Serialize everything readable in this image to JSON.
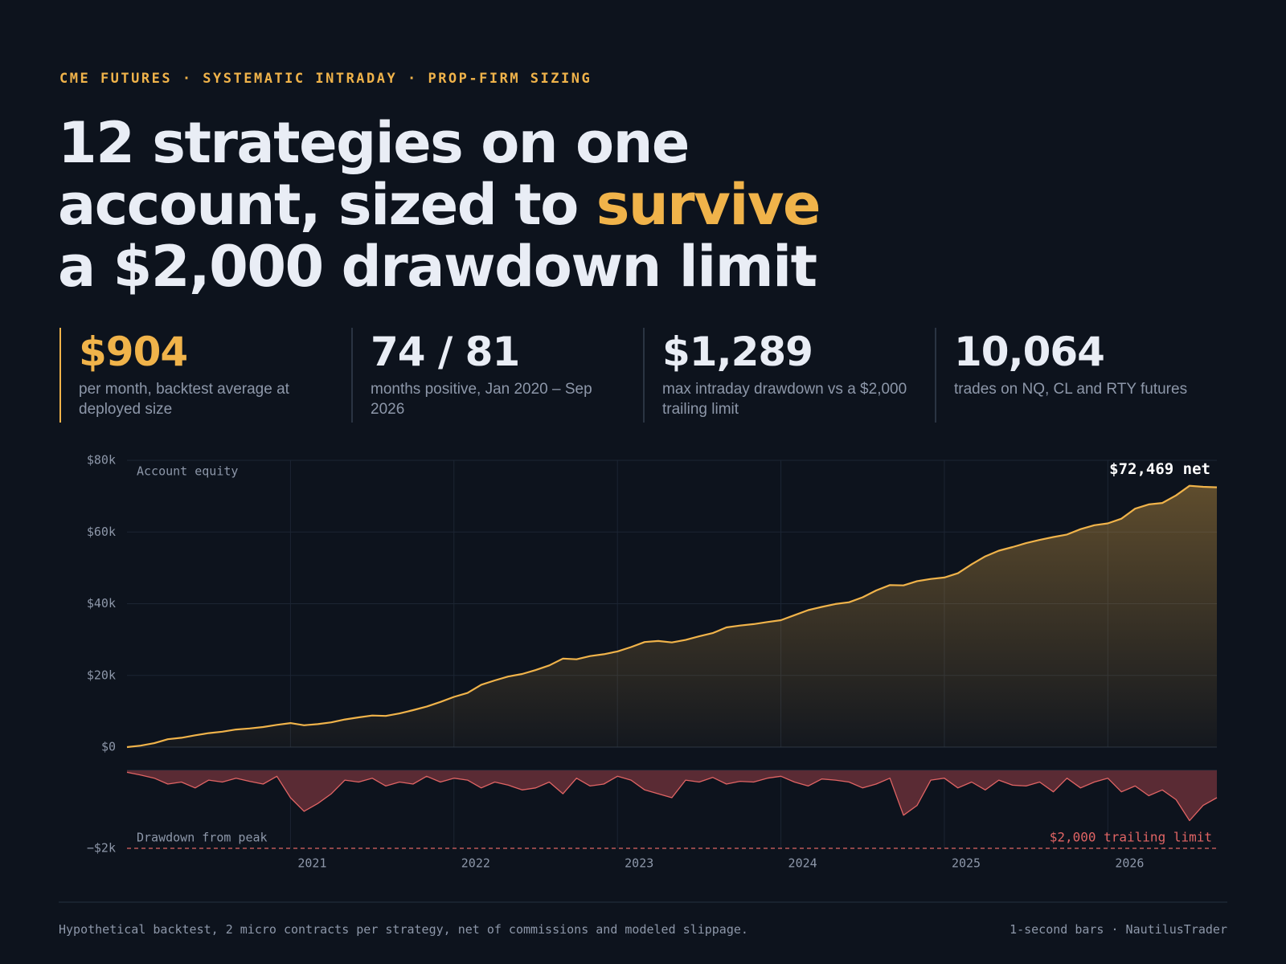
{
  "header": {
    "kicker": "CME FUTURES · SYSTEMATIC INTRADAY · PROP-FIRM SIZING",
    "title": [
      [
        "12 strategies on one"
      ],
      [
        "account, sized to ",
        "survive"
      ],
      [
        "a $2,000 drawdown limit"
      ]
    ]
  },
  "stats": [
    {
      "value": "$904",
      "label": "per month, backtest average at deployed size"
    },
    {
      "value": "74 / 81",
      "label": "months positive, Jan 2020 – Sep 2026"
    },
    {
      "value": "$1,289",
      "label": "max intraday drawdown vs a $2,000 trailing limit"
    },
    {
      "value": "10,064",
      "label": "trades on NQ, CL and RTY futures"
    }
  ],
  "chart_data": [
    {
      "type": "area",
      "title": "Account equity",
      "annotation": "$72,469 net",
      "color": "#f0b34a",
      "grid": true,
      "x": [
        2020,
        2020.083,
        2020.167,
        2020.25,
        2020.333,
        2020.417,
        2020.5,
        2020.583,
        2020.667,
        2020.75,
        2020.833,
        2020.917,
        2021,
        2021.083,
        2021.167,
        2021.25,
        2021.333,
        2021.417,
        2021.5,
        2021.583,
        2021.667,
        2021.75,
        2021.833,
        2021.917,
        2022,
        2022.083,
        2022.167,
        2022.25,
        2022.333,
        2022.417,
        2022.5,
        2022.583,
        2022.667,
        2022.75,
        2022.833,
        2022.917,
        2023,
        2023.083,
        2023.167,
        2023.25,
        2023.333,
        2023.417,
        2023.5,
        2023.583,
        2023.667,
        2023.75,
        2023.833,
        2023.917,
        2024,
        2024.083,
        2024.167,
        2024.25,
        2024.333,
        2024.417,
        2024.5,
        2024.583,
        2024.667,
        2024.75,
        2024.833,
        2024.917,
        2025,
        2025.083,
        2025.167,
        2025.25,
        2025.333,
        2025.417,
        2025.5,
        2025.583,
        2025.667,
        2025.75,
        2025.833,
        2025.917,
        2026,
        2026.083,
        2026.167,
        2026.25,
        2026.333,
        2026.417,
        2026.5,
        2026.583,
        2026.667
      ],
      "values": [
        0,
        400,
        1100,
        2200,
        2600,
        3300,
        3900,
        4300,
        4900,
        5200,
        5600,
        6200,
        6700,
        6100,
        6400,
        6900,
        7700,
        8300,
        8800,
        8700,
        9400,
        10300,
        11300,
        12600,
        14000,
        15100,
        17400,
        18600,
        19700,
        20400,
        21500,
        22800,
        24700,
        24500,
        25400,
        25900,
        26700,
        27900,
        29300,
        29600,
        29200,
        29900,
        30900,
        31800,
        33400,
        33900,
        34300,
        34900,
        35400,
        36800,
        38200,
        39100,
        39900,
        40400,
        41800,
        43700,
        45200,
        45100,
        46300,
        46900,
        47300,
        48500,
        51000,
        53200,
        54800,
        55800,
        56900,
        57800,
        58600,
        59300,
        60800,
        61900,
        62400,
        63700,
        66500,
        67700,
        68100,
        70200,
        72900,
        72600,
        72469
      ],
      "xlim": [
        2020,
        2026.667
      ],
      "ylim": [
        0,
        80000
      ],
      "yticks": [
        {
          "value": 0,
          "label": "$0"
        },
        {
          "value": 20000,
          "label": "$20k"
        },
        {
          "value": 40000,
          "label": "$40k"
        },
        {
          "value": 60000,
          "label": "$60k"
        },
        {
          "value": 80000,
          "label": "$80k"
        }
      ]
    },
    {
      "type": "area",
      "title": "Drawdown from peak",
      "color": "#e06464",
      "grid": true,
      "limit": {
        "value": -2000,
        "label": "$2,000 trailing limit"
      },
      "x": [
        2020,
        2020.083,
        2020.167,
        2020.25,
        2020.333,
        2020.417,
        2020.5,
        2020.583,
        2020.667,
        2020.75,
        2020.833,
        2020.917,
        2021,
        2021.083,
        2021.167,
        2021.25,
        2021.333,
        2021.417,
        2021.5,
        2021.583,
        2021.667,
        2021.75,
        2021.833,
        2021.917,
        2022,
        2022.083,
        2022.167,
        2022.25,
        2022.333,
        2022.417,
        2022.5,
        2022.583,
        2022.667,
        2022.75,
        2022.833,
        2022.917,
        2023,
        2023.083,
        2023.167,
        2023.25,
        2023.333,
        2023.417,
        2023.5,
        2023.583,
        2023.667,
        2023.75,
        2023.833,
        2023.917,
        2024,
        2024.083,
        2024.167,
        2024.25,
        2024.333,
        2024.417,
        2024.5,
        2024.583,
        2024.667,
        2024.75,
        2024.833,
        2024.917,
        2025,
        2025.083,
        2025.167,
        2025.25,
        2025.333,
        2025.417,
        2025.5,
        2025.583,
        2025.667,
        2025.75,
        2025.833,
        2025.917,
        2026,
        2026.083,
        2026.167,
        2026.25,
        2026.333,
        2026.417,
        2026.5,
        2026.583,
        2026.667
      ],
      "values": [
        -50,
        -120,
        -200,
        -350,
        -300,
        -450,
        -250,
        -300,
        -200,
        -280,
        -350,
        -150,
        -700,
        -1050,
        -850,
        -600,
        -250,
        -300,
        -200,
        -400,
        -300,
        -350,
        -150,
        -300,
        -200,
        -250,
        -450,
        -300,
        -380,
        -500,
        -450,
        -300,
        -600,
        -200,
        -400,
        -350,
        -150,
        -250,
        -500,
        -600,
        -700,
        -250,
        -300,
        -180,
        -350,
        -280,
        -300,
        -200,
        -150,
        -300,
        -400,
        -220,
        -250,
        -300,
        -450,
        -350,
        -200,
        -1150,
        -900,
        -250,
        -200,
        -450,
        -300,
        -500,
        -250,
        -380,
        -400,
        -300,
        -550,
        -200,
        -450,
        -300,
        -200,
        -550,
        -400,
        -650,
        -500,
        -750,
        -1289,
        -900,
        -700
      ],
      "xlim": [
        2020,
        2026.667
      ],
      "ylim": [
        -2000,
        0
      ],
      "yticks": [
        {
          "value": -2000,
          "label": "−$2k"
        }
      ],
      "xticks": [
        2021,
        2022,
        2023,
        2024,
        2025,
        2026
      ]
    }
  ],
  "footer": {
    "left": "Hypothetical backtest, 2 micro contracts per strategy, net of commissions and modeled slippage.",
    "right": "1-second bars · NautilusTrader"
  }
}
